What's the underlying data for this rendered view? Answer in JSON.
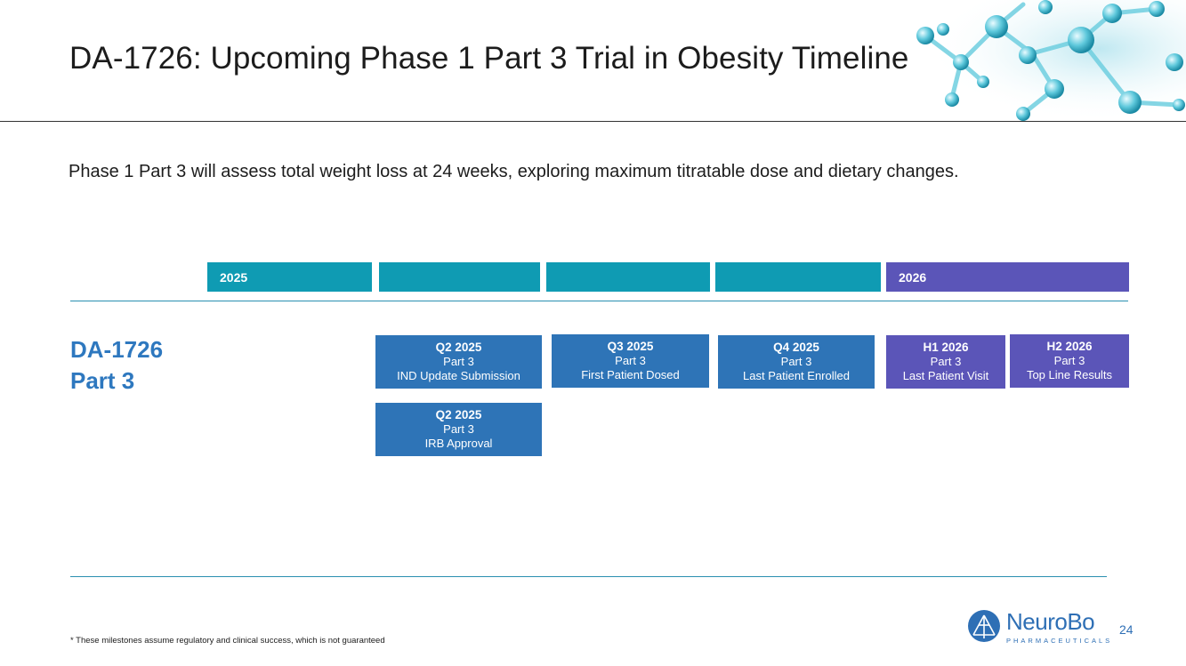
{
  "slide": {
    "title": "DA-1726: Upcoming Phase 1 Part 3 Trial in Obesity Timeline",
    "subtitle": "Phase 1 Part 3 will assess total weight loss at 24 weeks, exploring maximum titratable dose and dietary changes.",
    "footnote": "* These milestones assume regulatory and clinical success, which is not guaranteed",
    "page_number": "24"
  },
  "timeline": {
    "years": [
      "2025",
      "",
      "",
      "",
      "2026"
    ],
    "row_label_line1": "DA-1726",
    "row_label_line2": "Part 3",
    "milestones": [
      {
        "period": "Q2 2025",
        "part": "Part 3",
        "event": "IND Update Submission"
      },
      {
        "period": "Q3 2025",
        "part": "Part 3",
        "event": "First Patient Dosed"
      },
      {
        "period": "Q4 2025",
        "part": "Part 3",
        "event": "Last Patient Enrolled"
      },
      {
        "period": "H1 2026",
        "part": "Part 3",
        "event": "Last Patient Visit"
      },
      {
        "period": "H2 2026",
        "part": "Part 3",
        "event": "Top Line Results"
      },
      {
        "period": "Q2 2025",
        "part": "Part 3",
        "event": "IRB Approval"
      }
    ]
  },
  "logo": {
    "wordmark": "NeuroBo",
    "tagline": "PHARMACEUTICALS",
    "icon": "neurobo-atom-icon"
  },
  "colors": {
    "teal": "#0f9bb3",
    "purple": "#5b55b8",
    "blue": "#2e74b7",
    "label_blue": "#2e78bf"
  },
  "decor": {
    "header_image": "molecule-illustration"
  }
}
